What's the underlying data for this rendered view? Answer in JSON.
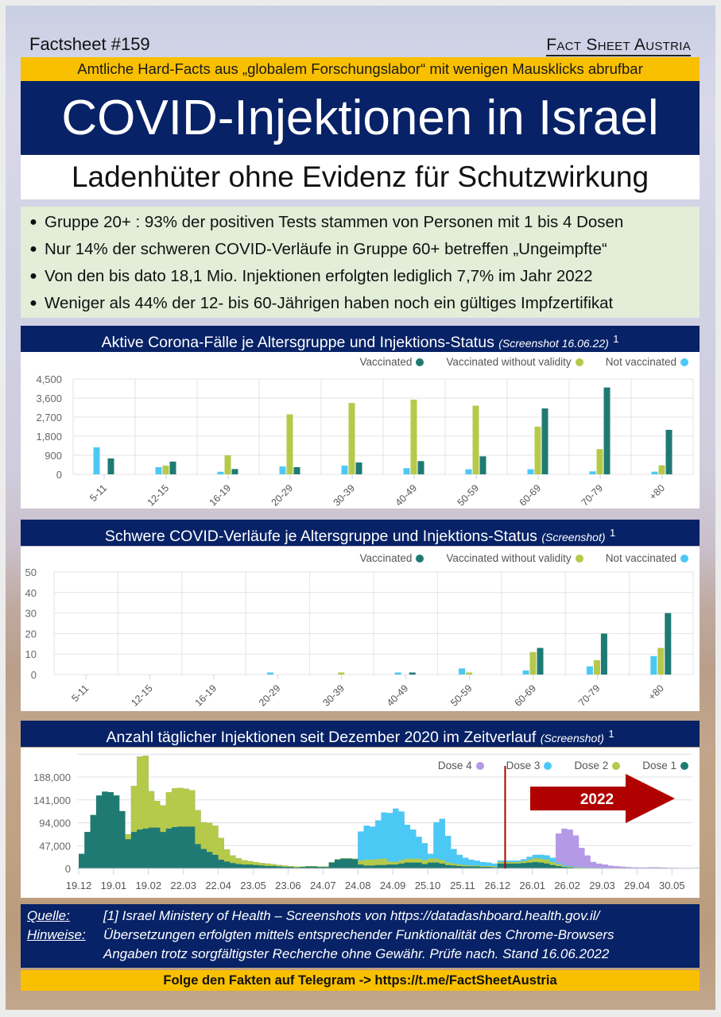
{
  "header": {
    "factsheet_number": "Factsheet #159",
    "brand": "Fact Sheet Austria",
    "tagline": "Amtliche Hard-Facts aus „globalem Forschungslabor“ mit wenigen Mausklicks abrufbar",
    "title": "COVID-Injektionen in Israel",
    "subtitle": "Ladenhüter ohne Evidenz für Schutzwirkung"
  },
  "bullets": [
    "Gruppe 20+ : 93% der positiven Tests stammen von Personen mit 1 bis 4 Dosen",
    "Nur 14% der schweren COVID-Verläufe in Gruppe 60+ betreffen „Ungeimpfte“",
    "Von den bis dato 18,1 Mio. Injektionen erfolgten lediglich 7,7% im Jahr 2022",
    "Weniger als 44% der 12- bis 60-Jährigen haben noch ein gültiges Impfzertifikat"
  ],
  "sections": [
    {
      "title": "Aktive Corona-Fälle je Altersgruppe und Injektions-Status",
      "note": "(Screenshot 16.06.22)",
      "footnote": "1"
    },
    {
      "title": "Schwere COVID-Verläufe je Altersgruppe und Injektions-Status",
      "note": "(Screenshot)",
      "footnote": "1"
    },
    {
      "title": "Anzahl täglicher Injektionen seit Dezember 2020 im Zeitverlauf",
      "note": "(Screenshot)",
      "footnote": "1"
    }
  ],
  "colors": {
    "vaccinated": "#1f7a74",
    "without_validity": "#b5c94a",
    "not_vaccinated": "#4cc8f5",
    "dose4": "#b49ae6",
    "dose3": "#4cc8f5",
    "dose2": "#b5c94a",
    "dose1": "#1f7a74",
    "marker": "#b00000",
    "navy": "#072266",
    "yellow": "#f8c000"
  },
  "chart_data": [
    {
      "type": "bar",
      "title": "Aktive Corona-Fälle je Altersgruppe und Injektions-Status",
      "categories": [
        "5-11",
        "12-15",
        "16-19",
        "20-29",
        "30-39",
        "40-49",
        "50-59",
        "60-69",
        "70-79",
        "+80"
      ],
      "series": [
        {
          "name": "Not vaccinated",
          "values": [
            1275,
            340,
            120,
            370,
            410,
            290,
            240,
            240,
            140,
            125
          ]
        },
        {
          "name": "Vaccinated without validity",
          "values": [
            0,
            410,
            900,
            2830,
            3370,
            3525,
            3240,
            2250,
            1190,
            425
          ]
        },
        {
          "name": "Vaccinated",
          "values": [
            750,
            600,
            250,
            340,
            560,
            625,
            850,
            3110,
            4100,
            2100
          ]
        }
      ],
      "legend": [
        "Vaccinated",
        "Vaccinated without validity",
        "Not vaccinated"
      ],
      "legend_position": "top-right",
      "yticks": [
        "0",
        "900",
        "1,800",
        "2,700",
        "3,600",
        "4,500"
      ],
      "ylim": [
        0,
        4500
      ],
      "grid": true,
      "xlabel": "",
      "ylabel": ""
    },
    {
      "type": "bar",
      "title": "Schwere COVID-Verläufe je Altersgruppe und Injektions-Status",
      "categories": [
        "5-11",
        "12-15",
        "16-19",
        "20-29",
        "30-39",
        "40-49",
        "50-59",
        "60-69",
        "70-79",
        "+80"
      ],
      "series": [
        {
          "name": "Not vaccinated",
          "values": [
            0,
            0,
            0,
            1,
            0,
            1,
            3,
            2,
            4,
            9
          ]
        },
        {
          "name": "Vaccinated without validity",
          "values": [
            0,
            0,
            0,
            0,
            1,
            0,
            1,
            11,
            7,
            13
          ]
        },
        {
          "name": "Vaccinated",
          "values": [
            0,
            0,
            0,
            0,
            0,
            1,
            0,
            13,
            20,
            30
          ]
        }
      ],
      "legend": [
        "Vaccinated",
        "Vaccinated without validity",
        "Not vaccinated"
      ],
      "legend_position": "top-right",
      "yticks": [
        "0",
        "10",
        "20",
        "30",
        "40",
        "50"
      ],
      "ylim": [
        0,
        50
      ],
      "grid": true,
      "xlabel": "",
      "ylabel": ""
    },
    {
      "type": "area",
      "stacked": true,
      "title": "Anzahl täglicher Injektionen seit Dezember 2020 im Zeitverlauf",
      "xticks": [
        "19.12",
        "19.01",
        "19.02",
        "22.03",
        "22.04",
        "23.05",
        "23.06",
        "24.07",
        "24.08",
        "24.09",
        "25.10",
        "25.11",
        "26.12",
        "26.01",
        "26.02",
        "29.03",
        "29.04",
        "30.05"
      ],
      "yticks": [
        "0",
        "47,000",
        "94,000",
        "141,000",
        "188,000"
      ],
      "ylim": [
        0,
        235000
      ],
      "samples_per_tick": 6,
      "series": [
        {
          "name": "Dose 1",
          "values": [
            30000,
            75000,
            110000,
            150000,
            158000,
            157000,
            150000,
            118000,
            60000,
            75000,
            80000,
            82000,
            84000,
            84000,
            75000,
            82000,
            85000,
            86000,
            86000,
            86000,
            50000,
            40000,
            34000,
            28000,
            18000,
            14000,
            11000,
            9000,
            8000,
            8000,
            7000,
            6000,
            5000,
            5000,
            4000,
            3000,
            3000,
            2000,
            3000,
            4000,
            4000,
            3000,
            3000,
            12000,
            18000,
            20000,
            20000,
            19000,
            8000,
            6000,
            6000,
            7000,
            7000,
            8000,
            8000,
            10000,
            12000,
            12000,
            12000,
            9000,
            12000,
            12000,
            10000,
            7000,
            6000,
            5000,
            4000,
            4000,
            4000,
            3000,
            3000,
            2000,
            10000,
            10000,
            10000,
            10000,
            11000,
            12000,
            13000,
            12000,
            10000,
            7000,
            5000,
            3000,
            2000,
            1000,
            800,
            600,
            500,
            400,
            400,
            300,
            300,
            300,
            300,
            300,
            200,
            200,
            200,
            200,
            200,
            200,
            200,
            200,
            200,
            200,
            200,
            200
          ],
          "note": "values in doses per day, approximate (read from screenshot)"
        },
        {
          "name": "Dose 2",
          "values": [
            0,
            0,
            0,
            0,
            0,
            0,
            0,
            0,
            10000,
            95000,
            150000,
            150000,
            75000,
            55000,
            55000,
            75000,
            80000,
            80000,
            78000,
            75000,
            70000,
            55000,
            60000,
            60000,
            45000,
            25000,
            16000,
            12000,
            9000,
            7000,
            6000,
            5000,
            5000,
            4000,
            3000,
            3000,
            2000,
            2000,
            1000,
            1000,
            1000,
            1000,
            1000,
            1000,
            1000,
            1000,
            1000,
            1000,
            8000,
            12000,
            12000,
            12000,
            13000,
            6000,
            5000,
            7000,
            8000,
            8000,
            8000,
            8000,
            8000,
            8000,
            7000,
            5000,
            4000,
            3000,
            3000,
            2000,
            2000,
            2000,
            2000,
            2000,
            3000,
            3000,
            3000,
            3000,
            4000,
            6000,
            8000,
            8000,
            8000,
            6000,
            4000,
            2000,
            1500,
            1000,
            800,
            600,
            500,
            400,
            400,
            300,
            300,
            300,
            300,
            300,
            200,
            200,
            200,
            200,
            200,
            200,
            200,
            200,
            200,
            200,
            200,
            200
          ]
        },
        {
          "name": "Dose 3",
          "values": [
            0,
            0,
            0,
            0,
            0,
            0,
            0,
            0,
            0,
            0,
            0,
            0,
            0,
            0,
            0,
            0,
            0,
            0,
            0,
            0,
            0,
            0,
            0,
            0,
            0,
            0,
            0,
            0,
            0,
            0,
            0,
            0,
            0,
            0,
            0,
            0,
            0,
            0,
            0,
            0,
            0,
            0,
            0,
            0,
            0,
            0,
            0,
            0,
            60000,
            70000,
            68000,
            80000,
            95000,
            100000,
            110000,
            100000,
            70000,
            60000,
            45000,
            35000,
            10000,
            75000,
            85000,
            55000,
            30000,
            20000,
            15000,
            12000,
            10000,
            8000,
            7000,
            6000,
            3000,
            3000,
            3000,
            3000,
            4000,
            6000,
            7000,
            8000,
            9000,
            9000,
            3000,
            2000,
            1500,
            1000,
            800,
            600,
            400,
            300,
            300,
            200,
            200,
            200,
            200,
            200,
            100,
            100,
            100,
            100,
            100,
            100,
            100,
            100,
            100,
            100,
            100,
            100
          ]
        },
        {
          "name": "Dose 4",
          "values": [
            0,
            0,
            0,
            0,
            0,
            0,
            0,
            0,
            0,
            0,
            0,
            0,
            0,
            0,
            0,
            0,
            0,
            0,
            0,
            0,
            0,
            0,
            0,
            0,
            0,
            0,
            0,
            0,
            0,
            0,
            0,
            0,
            0,
            0,
            0,
            0,
            0,
            0,
            0,
            0,
            0,
            0,
            0,
            0,
            0,
            0,
            0,
            0,
            0,
            0,
            0,
            0,
            0,
            0,
            0,
            0,
            0,
            0,
            0,
            0,
            0,
            0,
            0,
            0,
            0,
            0,
            0,
            0,
            0,
            0,
            0,
            0,
            0,
            0,
            0,
            0,
            0,
            0,
            0,
            0,
            0,
            0,
            60000,
            75000,
            75000,
            65000,
            40000,
            25000,
            12000,
            9000,
            7000,
            5000,
            4000,
            3000,
            2000,
            1500,
            1500,
            1500,
            2000,
            2000,
            1500,
            1000,
            800,
            600,
            500,
            500,
            500,
            500
          ]
        }
      ],
      "legend": [
        "Dose 4",
        "Dose 3",
        "Dose 2",
        "Dose 1"
      ],
      "legend_position": "top-right",
      "annotation": {
        "label": "2022",
        "type": "arrow",
        "marker_line_at": "start of 2022"
      },
      "grid": true,
      "xlabel": "",
      "ylabel": ""
    }
  ],
  "footer": {
    "source_label": "Quelle:",
    "source_text": "[1] Israel Ministery of Health – Screenshots von https://datadashboard.health.gov.il/",
    "notes_label": "Hinweise:",
    "notes_text_1": "Übersetzungen erfolgten mittels entsprechender Funktionalität des Chrome-Browsers",
    "notes_text_2": "Angaben trotz sorgfältigster Recherche ohne Gewähr. Prüfe nach. Stand 16.06.2022",
    "telegram": "Folge den Fakten auf Telegram  ->  https://t.me/FactSheetAustria"
  }
}
